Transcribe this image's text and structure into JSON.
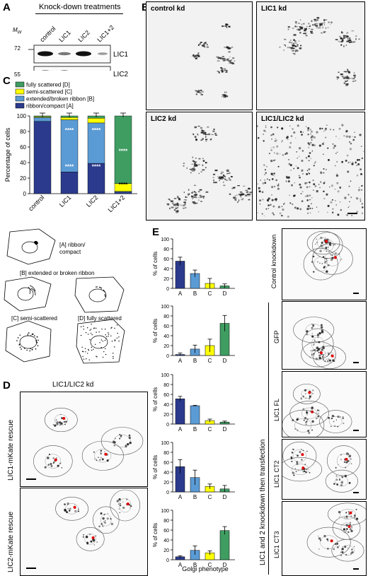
{
  "panelA": {
    "label": "A",
    "title": "Knock-down treatments",
    "mw_label": "M",
    "mw_sub": "W",
    "lanes": [
      "control",
      "LIC1",
      "LIC2",
      "LIC1+2"
    ],
    "mw_markers": [
      "72",
      "55"
    ],
    "bands": [
      "LIC1",
      "LIC2"
    ]
  },
  "panelB": {
    "label": "B",
    "images": [
      "control kd",
      "LIC1 kd",
      "LIC2 kd",
      "LIC1/LIC2 kd"
    ]
  },
  "panelC": {
    "label": "C"
  },
  "panelD": {
    "label": "D",
    "title": "LIC1/LIC2 kd",
    "rows": [
      "LIC1-mKate rescue",
      "LIC2-mKate rescue"
    ]
  },
  "panelE": {
    "label": "E",
    "xlabel": "Golgi phenotype",
    "side_label": "LIC1 and 2 knockdown then transfection",
    "row_labels": [
      "Control knockdown",
      "GFP",
      "LIC1 FL",
      "LIC1 CT2",
      "LIC1 CT3"
    ]
  },
  "schematic": {
    "items": [
      "[A] ribbon/ compact",
      "[B] extended or broken ribbon",
      "[C] semi-scattered",
      "[D] fully scattered"
    ]
  },
  "colors": {
    "A": "#2b3a8c",
    "B": "#5b9bd5",
    "C": "#ffff00",
    "D": "#3f9d62"
  },
  "chart_data": [
    {
      "type": "bar",
      "stacked": true,
      "categories": [
        "control",
        "LIC1",
        "LIC2",
        "LIC1+2"
      ],
      "ylabel": "Percentage of cells",
      "ylim": [
        0,
        100
      ],
      "yticks": [
        "0",
        "20",
        "40",
        "60",
        "80",
        "100"
      ],
      "legend": [
        "fully scattered [D]",
        "semi-scattered [C]",
        "extended/broken ribbon [B]",
        "ribbon/compact [A]"
      ],
      "legend_position": "top",
      "series": [
        {
          "name": "ribbon/compact [A]",
          "values": [
            93,
            28,
            39,
            2
          ]
        },
        {
          "name": "extended/broken ribbon [B]",
          "values": [
            5,
            67,
            52,
            1
          ]
        },
        {
          "name": "semi-scattered [C]",
          "values": [
            1,
            3,
            6,
            10
          ]
        },
        {
          "name": "fully scattered [D]",
          "values": [
            1,
            2,
            3,
            87
          ]
        }
      ],
      "annotations": [
        "****"
      ]
    },
    {
      "type": "bar",
      "ylabel": "% of cells",
      "ylim": [
        0,
        100
      ],
      "yticks": [
        "0",
        "20",
        "40",
        "60",
        "80",
        "100"
      ],
      "categories": [
        "A",
        "B",
        "C",
        "D"
      ],
      "values": [
        55,
        30,
        10,
        5
      ],
      "errors": [
        8,
        7,
        10,
        4
      ]
    },
    {
      "type": "bar",
      "ylabel": "% of cells",
      "ylim": [
        0,
        100
      ],
      "yticks": [
        "0",
        "20",
        "40",
        "60",
        "80",
        "100"
      ],
      "categories": [
        "A",
        "B",
        "C",
        "D"
      ],
      "values": [
        2,
        13,
        20,
        65
      ],
      "errors": [
        3,
        8,
        13,
        16
      ]
    },
    {
      "type": "bar",
      "ylabel": "% of cells",
      "ylim": [
        0,
        100
      ],
      "yticks": [
        "0",
        "20",
        "40",
        "60",
        "80",
        "100"
      ],
      "categories": [
        "A",
        "B",
        "C",
        "D"
      ],
      "values": [
        51,
        37,
        7,
        4
      ],
      "errors": [
        5,
        1,
        3,
        2
      ]
    },
    {
      "type": "bar",
      "ylabel": "% of cells",
      "ylim": [
        0,
        100
      ],
      "yticks": [
        "0",
        "20",
        "40",
        "60",
        "80",
        "100"
      ],
      "categories": [
        "A",
        "B",
        "C",
        "D"
      ],
      "values": [
        51,
        29,
        11,
        6
      ],
      "errors": [
        14,
        15,
        5,
        7
      ]
    },
    {
      "type": "bar",
      "ylabel": "% of cells",
      "ylim": [
        0,
        100
      ],
      "yticks": [
        "0",
        "20",
        "40",
        "60",
        "80",
        "100"
      ],
      "categories": [
        "A",
        "B",
        "C",
        "D"
      ],
      "values": [
        6,
        19,
        14,
        59
      ],
      "errors": [
        2,
        9,
        4,
        8
      ]
    }
  ]
}
